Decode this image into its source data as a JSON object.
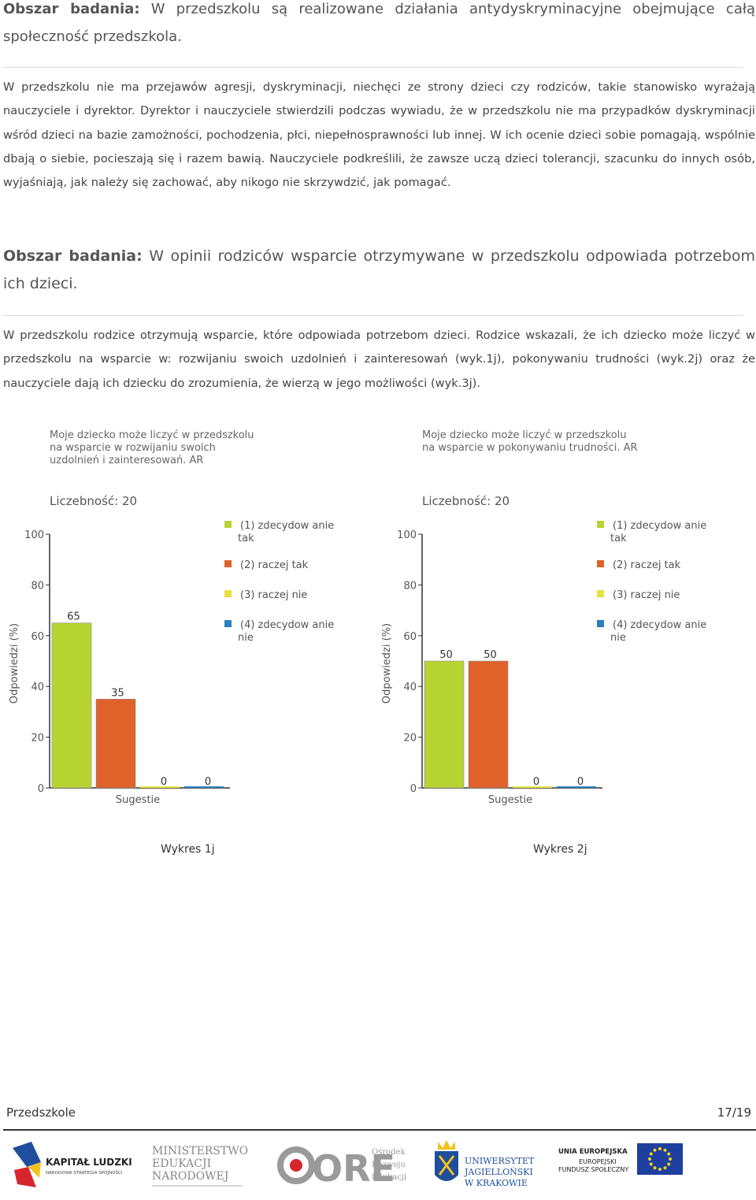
{
  "section1": {
    "label": "Obszar badania:",
    "text": "W przedszkolu są realizowane działania antydyskryminacyjne obejmujące całą społeczność przedszkola.",
    "paragraph": "W przedszkolu nie ma przejawów agresji, dyskryminacji, niechęci ze strony dzieci czy rodziców, takie stanowisko wyrażają nauczyciele i dyrektor. Dyrektor i nauczyciele stwierdzili podczas wywiadu, że w przedszkolu nie ma przypadków dyskryminacji wśród dzieci na bazie zamożności, pochodzenia, płci, niepełnosprawności lub innej. W ich ocenie dzieci sobie pomagają, wspólnie dbają o siebie, pocieszają się i razem bawią. Nauczyciele podkreślili, że zawsze uczą dzieci tolerancji, szacunku do innych osób, wyjaśniają, jak należy się zachować, aby nikogo nie skrzywdzić, jak pomagać."
  },
  "section2": {
    "label": "Obszar badania:",
    "text": "W opinii rodziców wsparcie otrzymywane w przedszkolu odpowiada potrzebom ich dzieci.",
    "paragraph": "W przedszkolu rodzice otrzymują wsparcie, które odpowiada potrzebom dzieci. Rodzice wskazali, że ich dziecko może liczyć w przedszkolu na wsparcie w: rozwijaniu swoich uzdolnień i zainteresowań (wyk.1j), pokonywaniu trudności (wyk.2j) oraz że nauczyciele dają ich dziecku do zrozumienia, że wierzą w jego możliwości (wyk.3j)."
  },
  "chart_data": [
    {
      "type": "bar",
      "title_lines": [
        "Moje dziecko może liczyć w przedszkolu",
        "na wsparcie w rozwijaniu swoich",
        "uzdolnień i zainteresowań. AR"
      ],
      "count_label": "Liczebność: 20",
      "ylabel": "Odpowiedzi (%)",
      "xlabel": "Sugestie",
      "ylim": [
        0,
        100
      ],
      "yticks": [
        "0",
        "20",
        "40",
        "60",
        "80",
        "100"
      ],
      "categories": [
        "(1) zdecydowanie tak",
        "(2) raczej tak",
        "(3) raczej nie",
        "(4) zdecydowanie nie"
      ],
      "values": [
        65,
        35,
        0,
        0
      ],
      "value_labels": [
        "65",
        "35",
        "0",
        "0"
      ],
      "legend": [
        {
          "lines": [
            "(1) zdecydow anie",
            "tak"
          ]
        },
        {
          "lines": [
            "(2) raczej tak"
          ]
        },
        {
          "lines": [
            "(3) raczej nie"
          ]
        },
        {
          "lines": [
            "(4) zdecydow anie",
            "nie"
          ]
        }
      ],
      "colors": [
        "#b8d432",
        "#e0622a",
        "#e8e040",
        "#2a7fc0"
      ],
      "caption": "Wykres 1j"
    },
    {
      "type": "bar",
      "title_lines": [
        "Moje dziecko może liczyć w przedszkolu",
        "na wsparcie w pokonywaniu trudności. AR"
      ],
      "count_label": "Liczebność: 20",
      "ylabel": "Odpowiedzi (%)",
      "xlabel": "Sugestie",
      "ylim": [
        0,
        100
      ],
      "yticks": [
        "0",
        "20",
        "40",
        "60",
        "80",
        "100"
      ],
      "categories": [
        "(1) zdecydowanie tak",
        "(2) raczej tak",
        "(3) raczej nie",
        "(4) zdecydowanie nie"
      ],
      "values": [
        50,
        50,
        0,
        0
      ],
      "value_labels": [
        "50",
        "50",
        "0",
        "0"
      ],
      "legend": [
        {
          "lines": [
            "(1) zdecydow anie",
            "tak"
          ]
        },
        {
          "lines": [
            "(2) raczej tak"
          ]
        },
        {
          "lines": [
            "(3) raczej nie"
          ]
        },
        {
          "lines": [
            "(4) zdecydow anie",
            "nie"
          ]
        }
      ],
      "colors": [
        "#b8d432",
        "#e0622a",
        "#e8e040",
        "#2a7fc0"
      ],
      "caption": "Wykres 2j"
    }
  ],
  "footer": {
    "left": "Przedszkole",
    "right": "17/19"
  },
  "logos": {
    "kapital": [
      "KAPITAŁ LUDZKI",
      "NARODOWA STRATEGIA SPÓJNOŚCI"
    ],
    "men": [
      "MINISTERSTWO",
      "EDUKACJI",
      "NARODOWEJ"
    ],
    "ore": [
      "ORE",
      "Ośrodek",
      "Rozwoju",
      "Edukacji"
    ],
    "uj": [
      "UNIWERSYTET",
      "JAGIELLOŃSKI",
      "W KRAKOWIE"
    ],
    "ue": [
      "UNIA EUROPEJSKA",
      "EUROPEJSKI",
      "FUNDUSZ SPOŁECZNY"
    ]
  }
}
